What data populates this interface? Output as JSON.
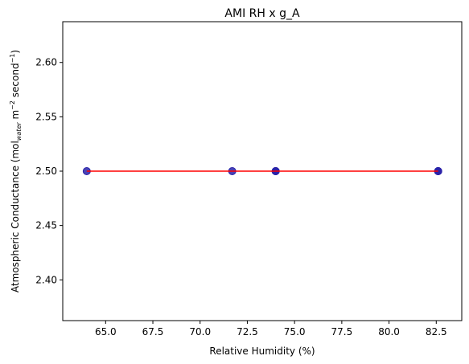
{
  "chart_data": {
    "type": "scatter",
    "title": "AMI RH x g_A",
    "xlabel": "Relative Humidity (%)",
    "ylabel": {
      "prefix": "Atmospheric Conductance (mol",
      "sub": "water",
      "mid": " m",
      "sup1": "−2",
      "mid2": " second",
      "sup2": "−1",
      "suffix": ")"
    },
    "xlim": [
      62.73,
      83.85
    ],
    "ylim": [
      2.3625,
      2.6375
    ],
    "xticks": [
      "65.0",
      "67.5",
      "70.0",
      "72.5",
      "75.0",
      "77.5",
      "80.0",
      "82.5"
    ],
    "xtick_values": [
      65.0,
      67.5,
      70.0,
      72.5,
      75.0,
      77.5,
      80.0,
      82.5
    ],
    "yticks": [
      "2.40",
      "2.45",
      "2.50",
      "2.55",
      "2.60"
    ],
    "ytick_values": [
      2.4,
      2.45,
      2.5,
      2.55,
      2.6
    ],
    "grid": false,
    "series": [
      {
        "kind": "scatter",
        "color": "#2a22a8",
        "x": [
          64.0,
          71.7,
          74.0,
          74.0,
          74.0,
          82.6,
          82.6,
          82.6
        ],
        "y": [
          2.5,
          2.5,
          2.5,
          2.5,
          2.5,
          2.5,
          2.5,
          2.5
        ]
      },
      {
        "kind": "line",
        "color": "#ff0000",
        "x": [
          64.0,
          82.6
        ],
        "y": [
          2.5,
          2.5
        ]
      }
    ]
  }
}
